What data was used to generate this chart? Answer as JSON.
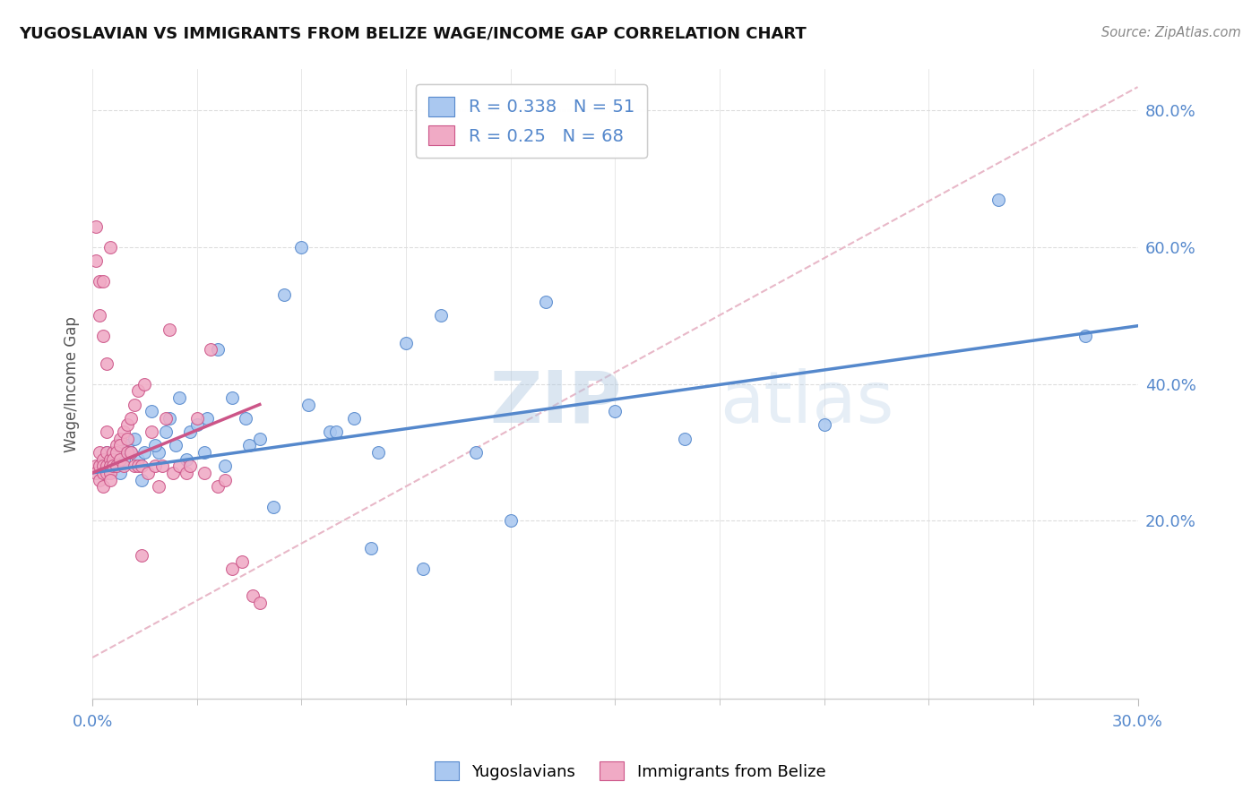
{
  "title": "YUGOSLAVIAN VS IMMIGRANTS FROM BELIZE WAGE/INCOME GAP CORRELATION CHART",
  "source": "Source: ZipAtlas.com",
  "ylabel": "Wage/Income Gap",
  "x_min": 0.0,
  "x_max": 0.3,
  "y_min": -0.06,
  "y_max": 0.86,
  "yticks": [
    0.2,
    0.4,
    0.6,
    0.8
  ],
  "ytick_labels": [
    "20.0%",
    "40.0%",
    "60.0%",
    "80.0%"
  ],
  "xtick_major": [
    0.0,
    0.3
  ],
  "xtick_labels": [
    "0.0%",
    "30.0%"
  ],
  "xtick_minor": [
    0.03,
    0.06,
    0.09,
    0.12,
    0.15,
    0.18,
    0.21,
    0.24,
    0.27
  ],
  "blue_R": 0.338,
  "blue_N": 51,
  "pink_R": 0.25,
  "pink_N": 68,
  "blue_fill": "#aac8f0",
  "pink_fill": "#f0aac5",
  "blue_edge": "#5588cc",
  "pink_edge": "#cc5588",
  "ref_line_color": "#e8b8c8",
  "legend_label_blue": "Yugoslavians",
  "legend_label_pink": "Immigrants from Belize",
  "background_color": "#ffffff",
  "watermark": "ZIPatlas",
  "blue_x": [
    0.002,
    0.004,
    0.006,
    0.007,
    0.008,
    0.009,
    0.01,
    0.012,
    0.013,
    0.015,
    0.017,
    0.019,
    0.022,
    0.025,
    0.028,
    0.03,
    0.033,
    0.036,
    0.04,
    0.044,
    0.048,
    0.055,
    0.062,
    0.068,
    0.075,
    0.082,
    0.09,
    0.1,
    0.11,
    0.13,
    0.15,
    0.17,
    0.21,
    0.26,
    0.285,
    0.008,
    0.011,
    0.014,
    0.018,
    0.021,
    0.024,
    0.027,
    0.032,
    0.038,
    0.045,
    0.052,
    0.06,
    0.07,
    0.08,
    0.095,
    0.12
  ],
  "blue_y": [
    0.28,
    0.3,
    0.29,
    0.3,
    0.27,
    0.29,
    0.31,
    0.32,
    0.29,
    0.3,
    0.36,
    0.3,
    0.35,
    0.38,
    0.33,
    0.34,
    0.35,
    0.45,
    0.38,
    0.35,
    0.32,
    0.53,
    0.37,
    0.33,
    0.35,
    0.3,
    0.46,
    0.5,
    0.3,
    0.52,
    0.36,
    0.32,
    0.34,
    0.67,
    0.47,
    0.29,
    0.3,
    0.26,
    0.31,
    0.33,
    0.31,
    0.29,
    0.3,
    0.28,
    0.31,
    0.22,
    0.6,
    0.33,
    0.16,
    0.13,
    0.2
  ],
  "pink_x": [
    0.001,
    0.001,
    0.002,
    0.002,
    0.002,
    0.003,
    0.003,
    0.003,
    0.003,
    0.004,
    0.004,
    0.004,
    0.005,
    0.005,
    0.005,
    0.005,
    0.006,
    0.006,
    0.006,
    0.007,
    0.007,
    0.007,
    0.008,
    0.008,
    0.008,
    0.009,
    0.009,
    0.01,
    0.01,
    0.01,
    0.011,
    0.011,
    0.012,
    0.012,
    0.013,
    0.013,
    0.014,
    0.014,
    0.015,
    0.016,
    0.017,
    0.018,
    0.019,
    0.02,
    0.021,
    0.022,
    0.023,
    0.025,
    0.027,
    0.028,
    0.03,
    0.032,
    0.034,
    0.036,
    0.038,
    0.04,
    0.043,
    0.046,
    0.048,
    0.001,
    0.001,
    0.002,
    0.002,
    0.003,
    0.003,
    0.004,
    0.004,
    0.005
  ],
  "pink_y": [
    0.28,
    0.27,
    0.3,
    0.28,
    0.26,
    0.29,
    0.28,
    0.27,
    0.25,
    0.3,
    0.28,
    0.27,
    0.29,
    0.28,
    0.27,
    0.26,
    0.3,
    0.29,
    0.28,
    0.31,
    0.3,
    0.28,
    0.32,
    0.31,
    0.29,
    0.33,
    0.28,
    0.34,
    0.32,
    0.3,
    0.35,
    0.3,
    0.37,
    0.28,
    0.39,
    0.28,
    0.28,
    0.15,
    0.4,
    0.27,
    0.33,
    0.28,
    0.25,
    0.28,
    0.35,
    0.48,
    0.27,
    0.28,
    0.27,
    0.28,
    0.35,
    0.27,
    0.45,
    0.25,
    0.26,
    0.13,
    0.14,
    0.09,
    0.08,
    0.63,
    0.58,
    0.55,
    0.5,
    0.55,
    0.47,
    0.43,
    0.33,
    0.6
  ],
  "blue_trend_x": [
    0.0,
    0.3
  ],
  "blue_trend_y": [
    0.27,
    0.485
  ],
  "pink_trend_x": [
    0.0,
    0.048
  ],
  "pink_trend_y": [
    0.27,
    0.37
  ]
}
